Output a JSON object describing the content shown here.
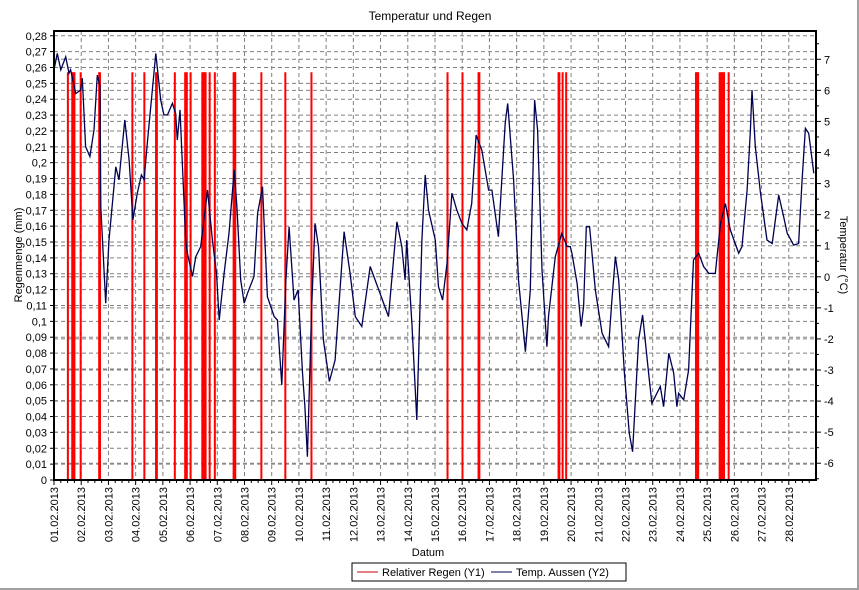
{
  "chart_data": {
    "type": "bar+line",
    "title": "Temperatur und Regen",
    "xlabel": "Datum",
    "ylabel": "Regenmenge (mm)",
    "y2label": "Temperatur (°C)",
    "x_range_days": [
      1,
      29
    ],
    "x_tick_labels": [
      "01.02.2013",
      "02.02.2013",
      "03.02.2013",
      "04.02.2013",
      "05.02.2013",
      "06.02.2013",
      "07.02.2013",
      "08.02.2013",
      "09.02.2013",
      "10.02.2013",
      "11.02.2013",
      "12.02.2013",
      "13.02.2013",
      "14.02.2013",
      "15.02.2013",
      "16.02.2013",
      "17.02.2013",
      "18.02.2013",
      "19.02.2013",
      "20.02.2013",
      "21.02.2013",
      "22.02.2013",
      "23.02.2013",
      "24.02.2013",
      "25.02.2013",
      "26.02.2013",
      "27.02.2013",
      "28.02.2013"
    ],
    "ylim": [
      0,
      0.283
    ],
    "y_ticks": [
      0,
      0.01,
      0.02,
      0.03,
      0.04,
      0.05,
      0.06,
      0.07,
      0.08,
      0.09,
      0.1,
      0.11,
      0.12,
      0.13,
      0.14,
      0.15,
      0.16,
      0.17,
      0.18,
      0.19,
      0.2,
      0.21,
      0.22,
      0.23,
      0.24,
      0.25,
      0.26,
      0.27,
      0.28
    ],
    "y_tick_labels": [
      "0",
      "0,01",
      "0,02",
      "0,03",
      "0,04",
      "0,05",
      "0,06",
      "0,07",
      "0,08",
      "0,09",
      "0,1",
      "0,11",
      "0,12",
      "0,13",
      "0,14",
      "0,15",
      "0,16",
      "0,17",
      "0,18",
      "0,19",
      "0,2",
      "0,21",
      "0,22",
      "0,23",
      "0,24",
      "0,25",
      "0,26",
      "0,27",
      "0,28"
    ],
    "y2lim": [
      -6.54,
      7.91
    ],
    "y2_ticks": [
      -6,
      -5,
      -4,
      -3,
      -2,
      -1,
      0,
      1,
      2,
      3,
      4,
      5,
      6,
      7
    ],
    "y2_tick_labels": [
      "-6",
      "-5",
      "-4",
      "-3",
      "-2",
      "-1",
      "0",
      "1",
      "2",
      "3",
      "4",
      "5",
      "6",
      "7"
    ],
    "grid": true,
    "legend": {
      "placement": "bottom-center",
      "entries": [
        "Relativer Regen (Y1)",
        "Temp. Aussen (Y2)"
      ]
    },
    "colors": {
      "rain": "#ff0000",
      "rain_edge": "#b22222",
      "temp": "#000050",
      "grid": "#808080"
    },
    "series": [
      {
        "name": "Relativer Regen (Y1)",
        "type": "bar",
        "axis": "y1",
        "value": 0.257,
        "days": [
          1.51,
          1.67,
          1.71,
          1.75,
          1.98,
          2.66,
          2.69,
          3.88,
          4.32,
          4.75,
          4.78,
          5.44,
          5.82,
          5.88,
          6.02,
          6.45,
          6.49,
          6.53,
          6.57,
          6.72,
          6.91,
          7.6,
          7.64,
          7.66,
          8.62,
          9.5,
          10.46,
          15.46,
          16.01,
          16.6,
          16.63,
          19.54,
          19.57,
          19.69,
          19.82,
          24.59,
          24.63,
          24.67,
          25.46,
          25.5,
          25.54,
          25.58,
          25.62,
          25.79
        ]
      },
      {
        "name": "Temp. Aussen (Y2)",
        "type": "line",
        "axis": "y2",
        "points": [
          [
            1.0,
            6.66
          ],
          [
            1.12,
            7.19
          ],
          [
            1.25,
            6.66
          ],
          [
            1.43,
            7.08
          ],
          [
            1.55,
            6.55
          ],
          [
            1.61,
            6.66
          ],
          [
            1.8,
            5.9
          ],
          [
            1.98,
            6.01
          ],
          [
            2.04,
            6.39
          ],
          [
            2.16,
            4.19
          ],
          [
            2.32,
            3.87
          ],
          [
            2.47,
            4.72
          ],
          [
            2.59,
            6.49
          ],
          [
            2.69,
            6.12
          ],
          [
            2.72,
            2.26
          ],
          [
            2.9,
            -0.85
          ],
          [
            3.02,
            1.18
          ],
          [
            3.27,
            3.54
          ],
          [
            3.39,
            3.12
          ],
          [
            3.6,
            5.05
          ],
          [
            3.76,
            3.76
          ],
          [
            3.9,
            1.83
          ],
          [
            4.06,
            2.69
          ],
          [
            4.21,
            3.28
          ],
          [
            4.31,
            3.12
          ],
          [
            4.43,
            4.3
          ],
          [
            4.74,
            7.19
          ],
          [
            4.92,
            5.69
          ],
          [
            5.04,
            5.21
          ],
          [
            5.17,
            5.21
          ],
          [
            5.35,
            5.58
          ],
          [
            5.47,
            5.26
          ],
          [
            5.53,
            4.4
          ],
          [
            5.63,
            5.37
          ],
          [
            5.84,
            1.18
          ],
          [
            5.9,
            0.76
          ],
          [
            6.09,
            0.01
          ],
          [
            6.21,
            0.65
          ],
          [
            6.39,
            0.97
          ],
          [
            6.64,
            2.79
          ],
          [
            6.82,
            1.18
          ],
          [
            6.97,
            0.11
          ],
          [
            7.07,
            -1.39
          ],
          [
            7.25,
            0.11
          ],
          [
            7.43,
            1.4
          ],
          [
            7.62,
            3.44
          ],
          [
            7.72,
            2.26
          ],
          [
            7.86,
            -0.1
          ],
          [
            7.99,
            -0.85
          ],
          [
            8.11,
            -0.53
          ],
          [
            8.35,
            0.01
          ],
          [
            8.48,
            2.04
          ],
          [
            8.66,
            2.9
          ],
          [
            8.84,
            -0.64
          ],
          [
            9.09,
            -1.28
          ],
          [
            9.21,
            -1.39
          ],
          [
            9.37,
            -3.48
          ],
          [
            9.52,
            -0.1
          ],
          [
            9.64,
            1.61
          ],
          [
            9.82,
            -0.75
          ],
          [
            9.97,
            -0.42
          ],
          [
            10.13,
            -3.1
          ],
          [
            10.22,
            -4.18
          ],
          [
            10.31,
            -5.79
          ],
          [
            10.47,
            -0.96
          ],
          [
            10.59,
            1.72
          ],
          [
            10.72,
            0.97
          ],
          [
            10.9,
            -2.03
          ],
          [
            11.12,
            -3.37
          ],
          [
            11.33,
            -2.68
          ],
          [
            11.51,
            -0.42
          ],
          [
            11.66,
            1.45
          ],
          [
            11.88,
            0.11
          ],
          [
            12.07,
            -1.28
          ],
          [
            12.31,
            -1.6
          ],
          [
            12.62,
            0.33
          ],
          [
            12.98,
            -0.53
          ],
          [
            13.29,
            -1.28
          ],
          [
            13.6,
            1.77
          ],
          [
            13.78,
            0.97
          ],
          [
            13.9,
            -0.1
          ],
          [
            13.96,
            1.18
          ],
          [
            14.15,
            -1.5
          ],
          [
            14.33,
            -4.61
          ],
          [
            14.52,
            1.18
          ],
          [
            14.64,
            3.28
          ],
          [
            14.76,
            2.15
          ],
          [
            15.01,
            1.18
          ],
          [
            15.13,
            -0.32
          ],
          [
            15.28,
            -0.75
          ],
          [
            15.44,
            0.43
          ],
          [
            15.62,
            2.69
          ],
          [
            15.8,
            2.15
          ],
          [
            15.99,
            1.72
          ],
          [
            16.17,
            1.51
          ],
          [
            16.35,
            2.36
          ],
          [
            16.51,
            4.56
          ],
          [
            16.72,
            4.08
          ],
          [
            16.97,
            2.79
          ],
          [
            17.09,
            2.79
          ],
          [
            17.33,
            1.29
          ],
          [
            17.58,
            4.94
          ],
          [
            17.67,
            5.58
          ],
          [
            17.89,
            3.12
          ],
          [
            18.07,
            -0.1
          ],
          [
            18.32,
            -2.41
          ],
          [
            18.5,
            -0.42
          ],
          [
            18.66,
            5.69
          ],
          [
            18.77,
            4.72
          ],
          [
            18.93,
            0.22
          ],
          [
            19.11,
            -2.25
          ],
          [
            19.17,
            -1.28
          ],
          [
            19.42,
            0.65
          ],
          [
            19.66,
            1.4
          ],
          [
            19.85,
            0.97
          ],
          [
            19.97,
            0.97
          ],
          [
            20.03,
            0.76
          ],
          [
            20.22,
            -0.21
          ],
          [
            20.37,
            -1.6
          ],
          [
            20.46,
            -0.96
          ],
          [
            20.56,
            1.61
          ],
          [
            20.68,
            1.61
          ],
          [
            20.89,
            -0.42
          ],
          [
            21.14,
            -1.82
          ],
          [
            21.38,
            -2.25
          ],
          [
            21.5,
            -0.75
          ],
          [
            21.63,
            0.65
          ],
          [
            21.75,
            -0.1
          ],
          [
            21.96,
            -3.1
          ],
          [
            22.14,
            -5.04
          ],
          [
            22.26,
            -5.63
          ],
          [
            22.48,
            -2.03
          ],
          [
            22.63,
            -1.23
          ],
          [
            22.85,
            -3.1
          ],
          [
            22.97,
            -4.07
          ],
          [
            23.28,
            -3.53
          ],
          [
            23.4,
            -4.18
          ],
          [
            23.59,
            -2.46
          ],
          [
            23.77,
            -3.1
          ],
          [
            23.89,
            -4.18
          ],
          [
            23.95,
            -3.75
          ],
          [
            24.14,
            -3.96
          ],
          [
            24.32,
            -3.0
          ],
          [
            24.5,
            0.54
          ],
          [
            24.69,
            0.76
          ],
          [
            24.87,
            0.33
          ],
          [
            25.06,
            0.11
          ],
          [
            25.3,
            0.11
          ],
          [
            25.49,
            1.72
          ],
          [
            25.67,
            2.36
          ],
          [
            25.85,
            1.51
          ],
          [
            26.16,
            0.76
          ],
          [
            26.28,
            0.97
          ],
          [
            26.47,
            2.79
          ],
          [
            26.59,
            4.72
          ],
          [
            26.65,
            6.01
          ],
          [
            26.77,
            4.19
          ],
          [
            26.96,
            2.69
          ],
          [
            27.2,
            1.18
          ],
          [
            27.39,
            1.07
          ],
          [
            27.63,
            2.63
          ],
          [
            27.81,
            1.94
          ],
          [
            27.94,
            1.4
          ],
          [
            28.18,
            1.02
          ],
          [
            28.36,
            1.07
          ],
          [
            28.49,
            3.12
          ],
          [
            28.61,
            4.78
          ],
          [
            28.73,
            4.62
          ],
          [
            28.92,
            3.33
          ]
        ]
      }
    ]
  }
}
